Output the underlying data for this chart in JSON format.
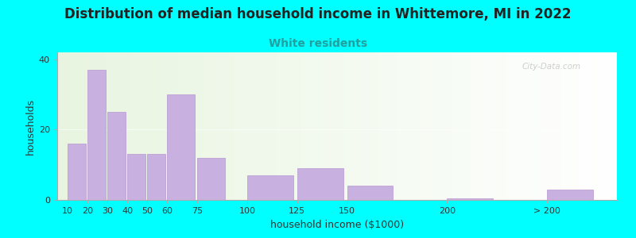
{
  "title": "Distribution of median household income in Whittemore, MI in 2022",
  "subtitle": "White residents",
  "xlabel": "household income ($1000)",
  "ylabel": "households",
  "background_color": "#00FFFF",
  "bar_color": "#c8b0e0",
  "bar_edge_color": "#b898d0",
  "title_fontsize": 12,
  "subtitle_fontsize": 10,
  "subtitle_color": "#20a0a0",
  "bar_positions": [
    10,
    20,
    30,
    40,
    50,
    60,
    75,
    100,
    125,
    150,
    200,
    250
  ],
  "bar_widths": [
    10,
    10,
    10,
    10,
    10,
    15,
    15,
    25,
    25,
    25,
    25,
    25
  ],
  "values": [
    16,
    37,
    25,
    13,
    13,
    30,
    12,
    7,
    9,
    4,
    0.5,
    3
  ],
  "ylim": [
    0,
    42
  ],
  "yticks": [
    0,
    20,
    40
  ],
  "xtick_positions": [
    10,
    20,
    30,
    40,
    50,
    60,
    75,
    100,
    125,
    150,
    200,
    250
  ],
  "xtick_labels": [
    "10",
    "20",
    "30",
    "40",
    "50",
    "60",
    "75",
    "100",
    "125",
    "150",
    "200",
    "> 200"
  ],
  "xlim": [
    5,
    285
  ],
  "watermark": "City-Data.com"
}
